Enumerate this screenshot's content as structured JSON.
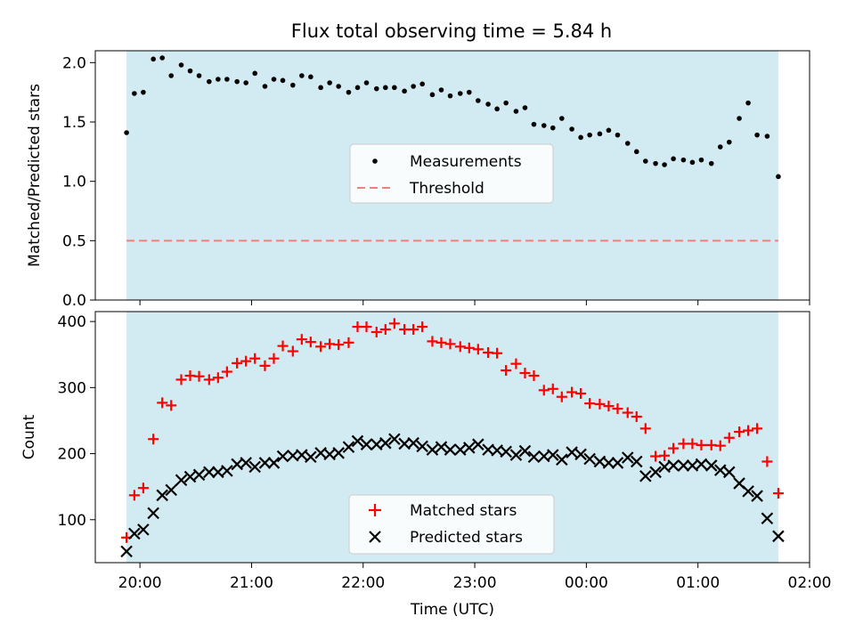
{
  "chart_data": [
    {
      "type": "scatter",
      "title": "Flux total observing time = 5.84 h",
      "ylabel": "Matched/Predicted stars",
      "ylim": [
        0,
        2.1
      ],
      "yticks": [
        0.0,
        0.5,
        1.0,
        1.5,
        2.0
      ],
      "ytick_labels": [
        "0.0",
        "0.5",
        "1.0",
        "1.5",
        "2.0"
      ],
      "xlim_hours": [
        19.6,
        26.0
      ],
      "shade_range_hours": [
        19.88,
        25.72
      ],
      "shade_color": "#add8e6",
      "legend_position": "center",
      "series": [
        {
          "name": "Measurements",
          "marker": "dot",
          "color": "#000000",
          "x": [
            19.88,
            19.95,
            20.03,
            20.12,
            20.2,
            20.28,
            20.37,
            20.45,
            20.53,
            20.62,
            20.7,
            20.78,
            20.87,
            20.95,
            21.03,
            21.12,
            21.2,
            21.28,
            21.37,
            21.45,
            21.53,
            21.62,
            21.7,
            21.78,
            21.87,
            21.95,
            22.03,
            22.12,
            22.2,
            22.28,
            22.37,
            22.45,
            22.53,
            22.62,
            22.7,
            22.78,
            22.87,
            22.95,
            23.03,
            23.12,
            23.2,
            23.28,
            23.37,
            23.45,
            23.53,
            23.62,
            23.7,
            23.78,
            23.87,
            23.95,
            24.03,
            24.12,
            24.2,
            24.28,
            24.37,
            24.45,
            24.53,
            24.62,
            24.7,
            24.78,
            24.87,
            24.95,
            25.03,
            25.12,
            25.2,
            25.28,
            25.37,
            25.45,
            25.53,
            25.62,
            25.72
          ],
          "y": [
            1.41,
            1.74,
            1.75,
            2.03,
            2.04,
            1.89,
            1.98,
            1.93,
            1.89,
            1.84,
            1.86,
            1.86,
            1.84,
            1.83,
            1.91,
            1.8,
            1.86,
            1.85,
            1.81,
            1.89,
            1.88,
            1.79,
            1.83,
            1.8,
            1.75,
            1.79,
            1.83,
            1.78,
            1.79,
            1.79,
            1.76,
            1.8,
            1.82,
            1.73,
            1.77,
            1.72,
            1.74,
            1.75,
            1.68,
            1.65,
            1.61,
            1.66,
            1.59,
            1.62,
            1.48,
            1.47,
            1.45,
            1.53,
            1.44,
            1.37,
            1.39,
            1.4,
            1.43,
            1.39,
            1.32,
            1.25,
            1.17,
            1.15,
            1.14,
            1.19,
            1.18,
            1.16,
            1.18,
            1.15,
            1.29,
            1.33,
            1.53,
            1.66,
            1.39,
            1.38,
            1.04
          ]
        },
        {
          "name": "Threshold",
          "marker": "dashed-line",
          "color": "#f08080",
          "value": 0.5
        }
      ]
    },
    {
      "type": "scatter",
      "xlabel": "Time (UTC)",
      "ylabel": "Count",
      "ylim": [
        35,
        415
      ],
      "yticks": [
        100,
        200,
        300,
        400
      ],
      "ytick_labels": [
        "100",
        "200",
        "300",
        "400"
      ],
      "xlim_hours": [
        19.6,
        26.0
      ],
      "xticks_hours": [
        20,
        21,
        22,
        23,
        24,
        25,
        26
      ],
      "xtick_labels": [
        "20:00",
        "21:00",
        "22:00",
        "23:00",
        "00:00",
        "01:00",
        "02:00"
      ],
      "shade_range_hours": [
        19.88,
        25.72
      ],
      "shade_color": "#add8e6",
      "legend_position": "lower center",
      "series": [
        {
          "name": "Matched stars",
          "marker": "plus",
          "color": "#ff0000",
          "x": [
            19.88,
            19.95,
            20.03,
            20.12,
            20.2,
            20.28,
            20.37,
            20.45,
            20.53,
            20.62,
            20.7,
            20.78,
            20.87,
            20.95,
            21.03,
            21.12,
            21.2,
            21.28,
            21.37,
            21.45,
            21.53,
            21.62,
            21.7,
            21.78,
            21.87,
            21.95,
            22.03,
            22.12,
            22.2,
            22.28,
            22.37,
            22.45,
            22.53,
            22.62,
            22.7,
            22.78,
            22.87,
            22.95,
            23.03,
            23.12,
            23.2,
            23.28,
            23.37,
            23.45,
            23.53,
            23.62,
            23.7,
            23.78,
            23.87,
            23.95,
            24.03,
            24.12,
            24.2,
            24.28,
            24.37,
            24.45,
            24.53,
            24.62,
            24.7,
            24.78,
            24.87,
            24.95,
            25.03,
            25.12,
            25.2,
            25.28,
            25.37,
            25.45,
            25.53,
            25.62,
            25.72
          ],
          "y": [
            73,
            137,
            148,
            222,
            277,
            273,
            312,
            318,
            317,
            312,
            315,
            324,
            337,
            340,
            344,
            333,
            344,
            363,
            355,
            373,
            369,
            362,
            366,
            365,
            368,
            392,
            392,
            384,
            388,
            397,
            388,
            388,
            392,
            370,
            368,
            366,
            362,
            360,
            358,
            353,
            352,
            326,
            336,
            322,
            318,
            296,
            298,
            286,
            293,
            291,
            276,
            275,
            272,
            268,
            262,
            256,
            238,
            196,
            197,
            208,
            215,
            215,
            213,
            213,
            212,
            224,
            233,
            235,
            238,
            188,
            140
          ]
        },
        {
          "name": "Predicted stars",
          "marker": "x",
          "color": "#000000",
          "x": [
            19.88,
            19.95,
            20.03,
            20.12,
            20.2,
            20.28,
            20.37,
            20.45,
            20.53,
            20.62,
            20.7,
            20.78,
            20.87,
            20.95,
            21.03,
            21.12,
            21.2,
            21.28,
            21.37,
            21.45,
            21.53,
            21.62,
            21.7,
            21.78,
            21.87,
            21.95,
            22.03,
            22.12,
            22.2,
            22.28,
            22.37,
            22.45,
            22.53,
            22.62,
            22.7,
            22.78,
            22.87,
            22.95,
            23.03,
            23.12,
            23.2,
            23.28,
            23.37,
            23.45,
            23.53,
            23.62,
            23.7,
            23.78,
            23.87,
            23.95,
            24.03,
            24.12,
            24.2,
            24.28,
            24.37,
            24.45,
            24.53,
            24.62,
            24.7,
            24.78,
            24.87,
            24.95,
            25.03,
            25.12,
            25.2,
            25.28,
            25.37,
            25.45,
            25.53,
            25.62,
            25.72
          ],
          "y": [
            52,
            79,
            85,
            110,
            137,
            145,
            160,
            165,
            168,
            172,
            172,
            174,
            184,
            186,
            180,
            186,
            186,
            196,
            197,
            198,
            195,
            201,
            199,
            201,
            210,
            219,
            214,
            214,
            216,
            222,
            215,
            216,
            211,
            206,
            210,
            206,
            206,
            209,
            214,
            206,
            205,
            203,
            198,
            204,
            195,
            196,
            198,
            191,
            202,
            199,
            192,
            188,
            186,
            186,
            194,
            188,
            166,
            172,
            180,
            182,
            182,
            182,
            184,
            182,
            175,
            172,
            155,
            143,
            136,
            102,
            75
          ]
        }
      ]
    }
  ]
}
